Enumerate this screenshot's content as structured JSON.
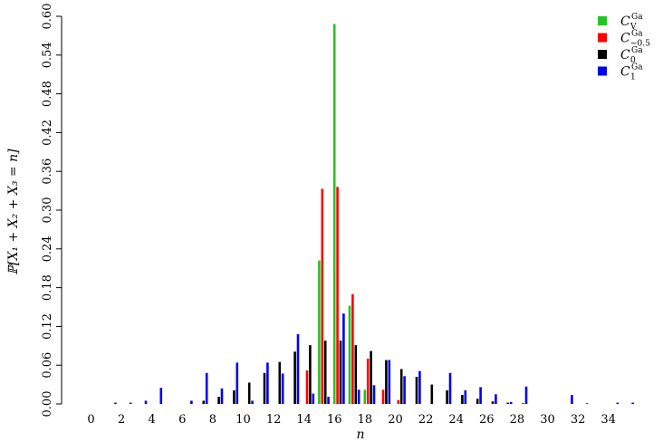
{
  "chart_data": {
    "type": "bar",
    "xlabel": "n",
    "ylabel": "ℙ[X₁ + X₂ + X₃ = n]",
    "ylim": [
      0,
      0.6
    ],
    "yticks": [
      "0.00",
      "0.06",
      "0.12",
      "0.18",
      "0.24",
      "0.30",
      "0.36",
      "0.42",
      "0.48",
      "0.54",
      "0.60"
    ],
    "xticks": [
      "0",
      "2",
      "4",
      "6",
      "8",
      "10",
      "12",
      "14",
      "16",
      "18",
      "20",
      "22",
      "24",
      "26",
      "28",
      "30",
      "32",
      "34"
    ],
    "x": [
      0,
      1,
      2,
      3,
      4,
      5,
      6,
      7,
      8,
      9,
      10,
      11,
      12,
      13,
      14,
      15,
      16,
      17,
      18,
      19,
      20,
      21,
      22,
      23,
      24,
      25,
      26,
      27,
      28,
      29,
      30,
      31,
      32,
      33,
      34,
      35
    ],
    "grid": false,
    "legend_position": "top-right",
    "series": [
      {
        "name": "C_V^Ga",
        "legend": {
          "base": "C",
          "sup": "Ga",
          "sub": "V"
        },
        "color": "#22c322",
        "values": [
          0,
          0,
          0,
          0,
          0,
          0,
          0,
          0,
          0,
          0,
          0,
          0,
          0,
          0,
          0,
          0.222,
          0.588,
          0.152,
          0.022,
          0,
          0,
          0,
          0,
          0,
          0,
          0,
          0,
          0,
          0,
          0,
          0,
          0,
          0,
          0,
          0,
          0
        ]
      },
      {
        "name": "C_-0.5^Ga",
        "legend": {
          "base": "C",
          "sup": "Ga",
          "sub": "−0.5"
        },
        "color": "#ff0000",
        "values": [
          0,
          0,
          0,
          0,
          0,
          0,
          0,
          0,
          0,
          0,
          0,
          0,
          0,
          0,
          0.052,
          0.333,
          0.336,
          0.17,
          0.07,
          0.022,
          0.006,
          0,
          0,
          0,
          0,
          0,
          0,
          0,
          0,
          0,
          0,
          0,
          0,
          0,
          0,
          0
        ]
      },
      {
        "name": "C_0^Ga",
        "legend": {
          "base": "C",
          "sup": "Ga",
          "sub": "0"
        },
        "color": "#000000",
        "values": [
          0,
          0,
          0,
          0,
          0,
          0,
          0,
          0.005,
          0.011,
          0.021,
          0.033,
          0.048,
          0.065,
          0.081,
          0.091,
          0.098,
          0.098,
          0.091,
          0.082,
          0.068,
          0.054,
          0.042,
          0.03,
          0.021,
          0.014,
          0.008,
          0.004,
          0.002,
          0.001,
          0,
          0,
          0,
          0,
          0,
          0,
          0
        ]
      },
      {
        "name": "C_1^Ga",
        "legend": {
          "base": "C",
          "sup": "Ga",
          "sub": "1"
        },
        "color": "#0000ee",
        "values": [
          0,
          0.002,
          0.002,
          0.005,
          0.025,
          0,
          0.005,
          0.048,
          0.024,
          0.064,
          0.005,
          0.064,
          0.047,
          0.108,
          0.016,
          0.011,
          0.14,
          0.022,
          0.029,
          0.068,
          0.043,
          0.051,
          0,
          0.048,
          0.021,
          0.026,
          0.015,
          0.003,
          0.027,
          0,
          0,
          0.014,
          0.001,
          0,
          0.002,
          0.002
        ]
      }
    ]
  }
}
